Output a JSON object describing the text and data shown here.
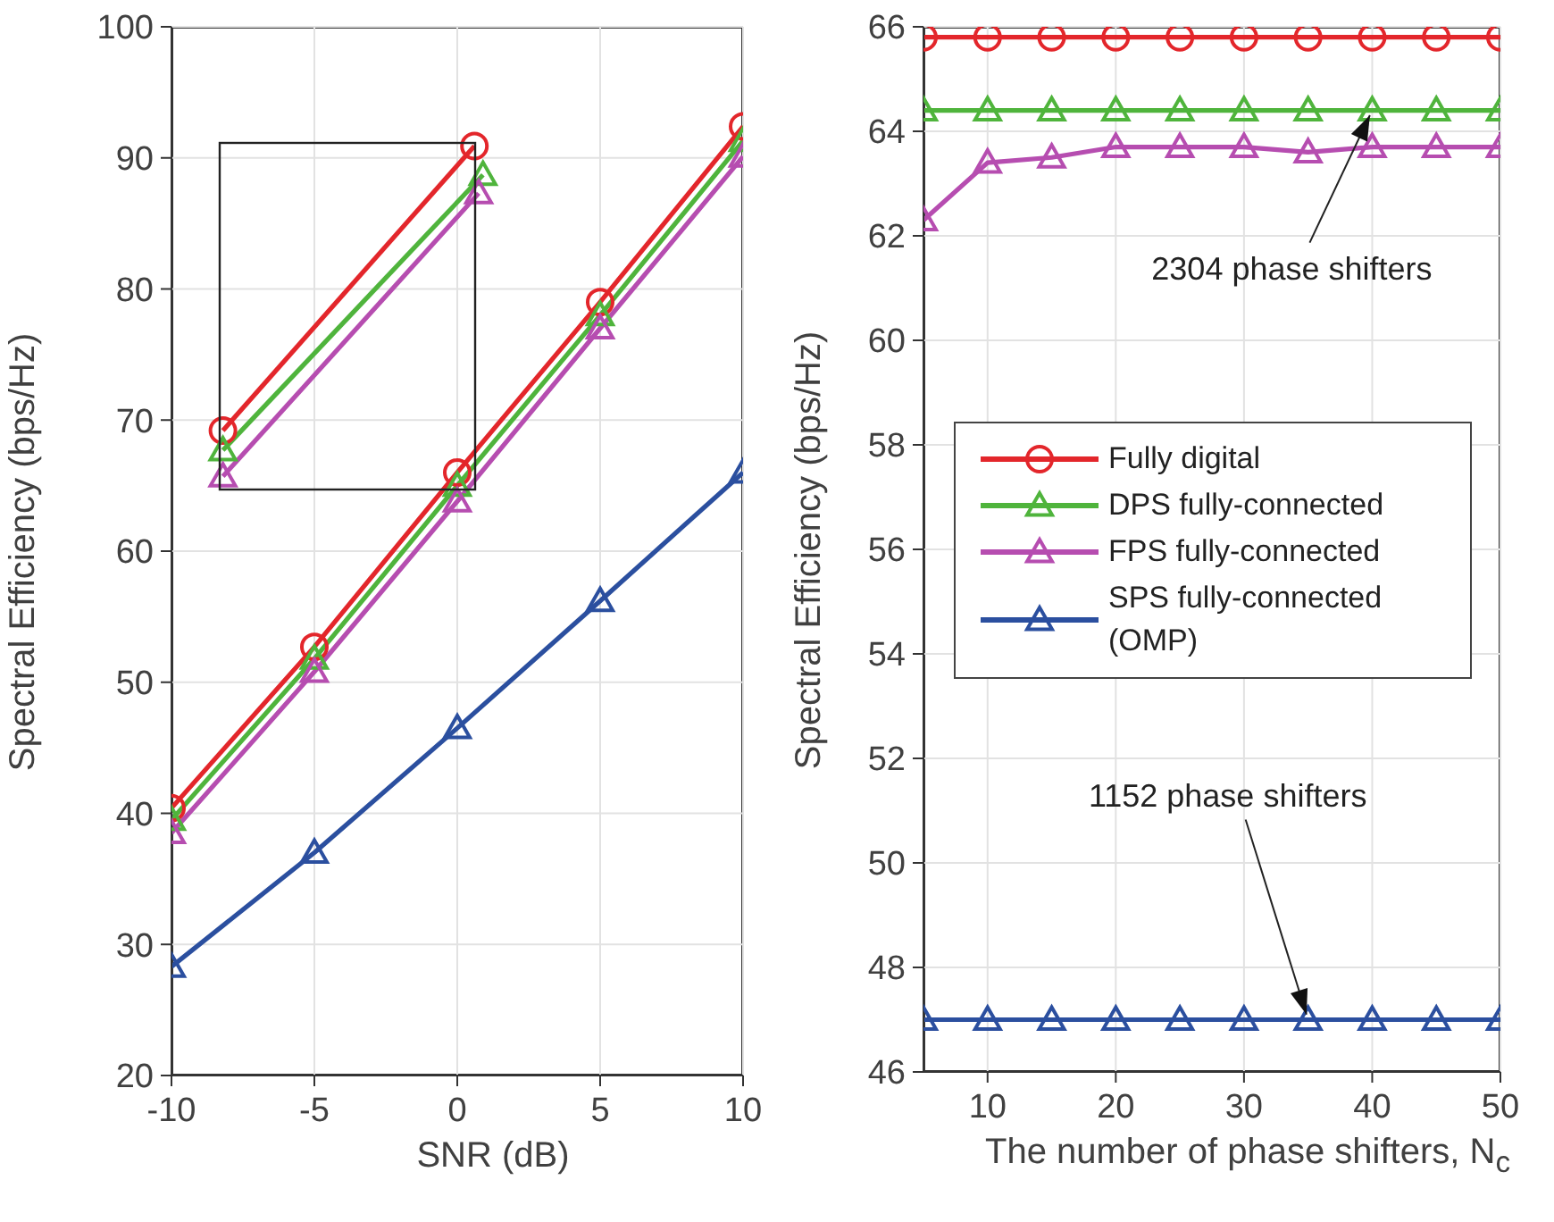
{
  "chart_data": [
    {
      "type": "line",
      "xlabel": "SNR (dB)",
      "ylabel": "Spectral Efficiency (bps/Hz)",
      "x": [
        -10,
        -5,
        0,
        5,
        10
      ],
      "xlim": [
        -10,
        10
      ],
      "xticks": [
        -10,
        -5,
        0,
        5,
        10
      ],
      "ylim": [
        20,
        100
      ],
      "yticks": [
        20,
        30,
        40,
        50,
        60,
        70,
        80,
        90,
        100
      ],
      "grid": true,
      "legend": false,
      "series": [
        {
          "color": "#e3262b",
          "marker": "circle",
          "values": [
            40.4,
            52.7,
            66,
            79,
            92.4
          ]
        },
        {
          "color": "#4fb43c",
          "marker": "triangle",
          "values": [
            39.5,
            51.8,
            65,
            78,
            91.3
          ]
        },
        {
          "color": "#b64db0",
          "marker": "triangle",
          "values": [
            38.5,
            50.8,
            63.8,
            77,
            90.1
          ]
        },
        {
          "color": "#2b4f9f",
          "marker": "triangle",
          "values": [
            28.3,
            37,
            46.5,
            56.2,
            66
          ]
        },
        {
          "color": "#e3262b",
          "marker": "circle",
          "x": [
            -8.2,
            0.6
          ],
          "values": [
            69.2,
            90.9
          ]
        },
        {
          "color": "#4fb43c",
          "marker": "triangle",
          "x": [
            -8.2,
            0.9
          ],
          "values": [
            67.7,
            88.7
          ]
        },
        {
          "color": "#b64db0",
          "marker": "triangle",
          "x": [
            -8.2,
            0.75
          ],
          "values": [
            65.7,
            87.3
          ]
        }
      ]
    },
    {
      "type": "line",
      "xlabel": "The number of phase shifters, N$_{c}$",
      "ylabel": "Spectral Efficiency (bps/Hz)",
      "x": [
        5,
        10,
        15,
        20,
        25,
        30,
        35,
        40,
        45,
        50
      ],
      "xlim": [
        5,
        50
      ],
      "xticks": [
        10,
        20,
        30,
        40,
        50
      ],
      "ylim": [
        46,
        66
      ],
      "yticks": [
        46,
        48,
        50,
        52,
        54,
        56,
        58,
        60,
        62,
        64,
        66
      ],
      "grid": true,
      "legend": "center",
      "series": [
        {
          "name": "Fully digital",
          "color": "#e3262b",
          "marker": "circle",
          "values": [
            65.8,
            65.8,
            65.8,
            65.8,
            65.8,
            65.8,
            65.8,
            65.8,
            65.8,
            65.8
          ]
        },
        {
          "name": "DPS fully-connected",
          "color": "#4fb43c",
          "marker": "triangle",
          "values": [
            64.4,
            64.4,
            64.4,
            64.4,
            64.4,
            64.4,
            64.4,
            64.4,
            64.4,
            64.4
          ]
        },
        {
          "name": "FPS fully-connected",
          "color": "#b64db0",
          "marker": "triangle",
          "values": [
            62.3,
            63.4,
            63.5,
            63.7,
            63.7,
            63.7,
            63.6,
            63.7,
            63.7,
            63.7
          ]
        },
        {
          "name": "SPS fully-connected (OMP)",
          "color": "#2b4f9f",
          "marker": "triangle",
          "values": [
            47,
            47,
            47,
            47,
            47,
            47,
            47,
            47,
            47,
            47
          ]
        }
      ],
      "annotations": [
        {
          "text": "2304 phase shifters",
          "x": 40,
          "y": 64.4
        },
        {
          "text": "1152 phase shifters",
          "x": 35,
          "y": 47
        }
      ]
    }
  ]
}
